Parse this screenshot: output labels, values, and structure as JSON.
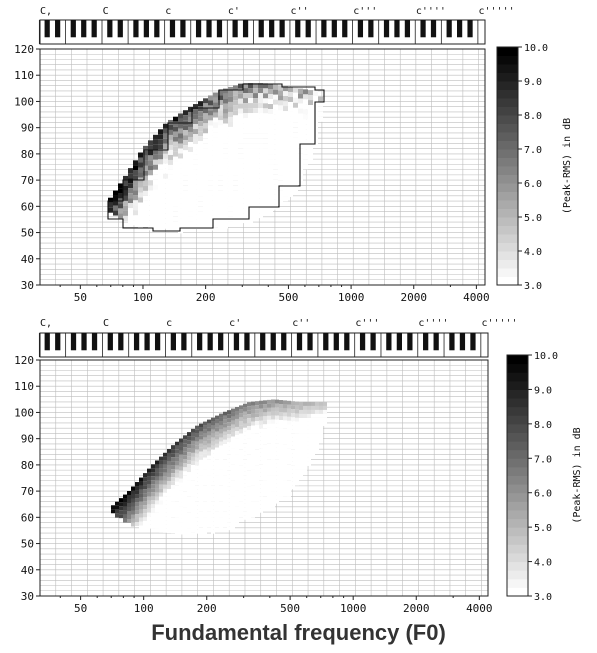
{
  "figure": {
    "xlabel": "Fundamental frequency (F0)"
  },
  "note_labels": [
    "C,",
    "C",
    "c",
    "c'",
    "c''",
    "c'''",
    "c''''",
    "c'''''"
  ],
  "colorbar_label": "(Peak-RMS) in dB",
  "chart_data": [
    {
      "type": "heatmap",
      "panel": "top",
      "x_scale": "log",
      "xlim": [
        32,
        4400
      ],
      "ylim": [
        30,
        120
      ],
      "x_ticks": [
        50,
        100,
        200,
        500,
        1000,
        2000,
        4000
      ],
      "x_tick_labels": [
        "50",
        "100",
        "200",
        "500",
        "1000",
        "2000",
        "4000"
      ],
      "y_ticks": [
        30,
        40,
        50,
        60,
        70,
        80,
        90,
        100,
        110,
        120
      ],
      "y_tick_labels": [
        "30",
        "40",
        "50",
        "60",
        "70",
        "80",
        "90",
        "100",
        "110",
        "120"
      ],
      "grid": true,
      "outline": true,
      "colorbar": {
        "range": [
          3.0,
          10.0
        ],
        "ticks": [
          3.0,
          4.0,
          5.0,
          6.0,
          7.0,
          8.0,
          9.0,
          10.0
        ],
        "tick_labels": [
          "3.0",
          "4.0",
          "5.0",
          "6.0",
          "7.0",
          "8.0",
          "9.0",
          "10.0"
        ],
        "label": "(Peak-RMS) in dB"
      },
      "region": {
        "lower_boundary": [
          [
            68,
            60
          ],
          [
            80,
            55
          ],
          [
            110,
            52
          ],
          [
            150,
            51
          ],
          [
            220,
            52
          ],
          [
            320,
            55
          ],
          [
            450,
            60
          ],
          [
            560,
            68
          ],
          [
            680,
            84
          ],
          [
            740,
            100
          ]
        ],
        "upper_boundary": [
          [
            68,
            62
          ],
          [
            80,
            70
          ],
          [
            100,
            82
          ],
          [
            130,
            92
          ],
          [
            170,
            98
          ],
          [
            230,
            104
          ],
          [
            300,
            107
          ],
          [
            380,
            107
          ],
          [
            470,
            106
          ],
          [
            560,
            105
          ],
          [
            680,
            104
          ],
          [
            740,
            100
          ]
        ],
        "value_note": "high (dark, ~9–10 dB) along the upper-left edge, decreasing to ~3–4 dB toward lower-right"
      }
    },
    {
      "type": "heatmap",
      "panel": "bottom",
      "x_scale": "log",
      "xlim": [
        32,
        4400
      ],
      "ylim": [
        30,
        120
      ],
      "x_ticks": [
        50,
        100,
        200,
        500,
        1000,
        2000,
        4000
      ],
      "x_tick_labels": [
        "50",
        "100",
        "200",
        "500",
        "1000",
        "2000",
        "4000"
      ],
      "y_ticks": [
        30,
        40,
        50,
        60,
        70,
        80,
        90,
        100,
        110,
        120
      ],
      "y_tick_labels": [
        "30",
        "40",
        "50",
        "60",
        "70",
        "80",
        "90",
        "100",
        "110",
        "120"
      ],
      "grid": true,
      "outline": false,
      "colorbar": {
        "range": [
          3.0,
          10.0
        ],
        "ticks": [
          3.0,
          4.0,
          5.0,
          6.0,
          7.0,
          8.0,
          9.0,
          10.0
        ],
        "tick_labels": [
          "3.0",
          "4.0",
          "5.0",
          "6.0",
          "7.0",
          "8.0",
          "9.0",
          "10.0"
        ],
        "label": "(Peak-RMS) in dB"
      },
      "region": {
        "lower_boundary": [
          [
            70,
            62
          ],
          [
            85,
            58
          ],
          [
            120,
            55
          ],
          [
            170,
            54
          ],
          [
            250,
            56
          ],
          [
            350,
            62
          ],
          [
            480,
            68
          ],
          [
            600,
            78
          ],
          [
            720,
            92
          ],
          [
            760,
            104
          ]
        ],
        "upper_boundary": [
          [
            70,
            64
          ],
          [
            85,
            70
          ],
          [
            110,
            80
          ],
          [
            140,
            88
          ],
          [
            180,
            95
          ],
          [
            240,
            100
          ],
          [
            320,
            104
          ],
          [
            420,
            105
          ],
          [
            560,
            104
          ],
          [
            700,
            104
          ],
          [
            760,
            104
          ]
        ],
        "value_note": "smoothed; dark (~9–10 dB) along upper-left edge, fading to light (~3 dB) at lower-right"
      }
    }
  ]
}
